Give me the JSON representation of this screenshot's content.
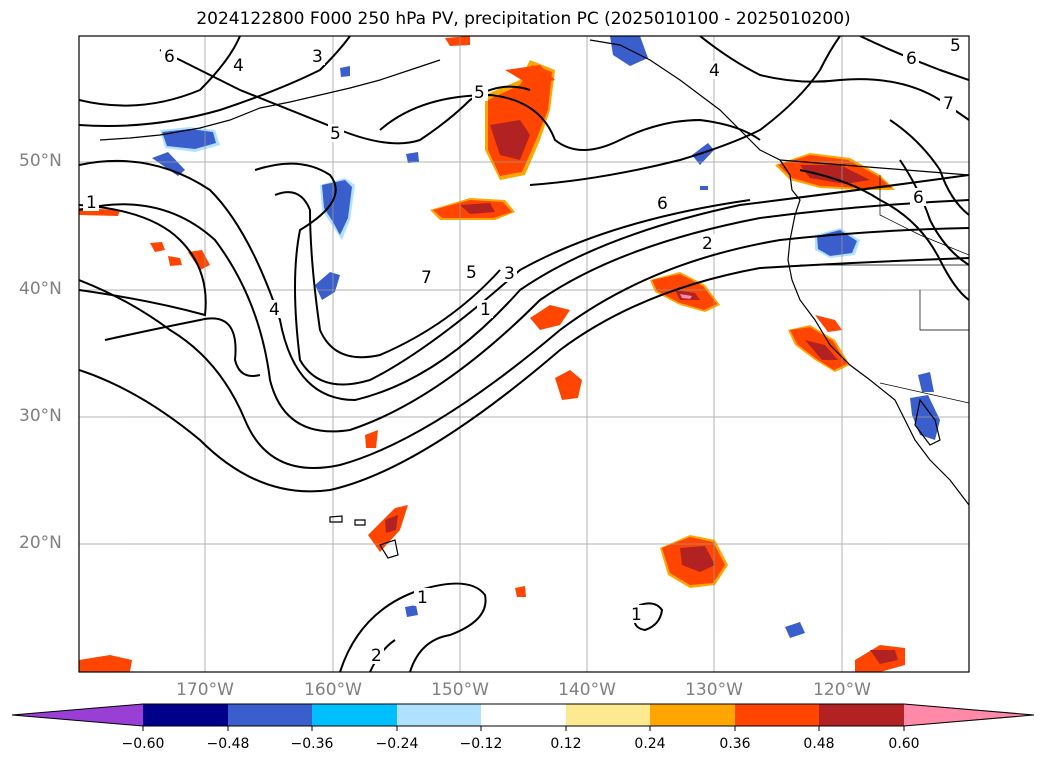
{
  "title": "2024122800 F000 250 hPa PV, precipitation PC (2025010100 - 2025010200)",
  "lat_labels": [
    "50°N",
    "40°N",
    "30°N",
    "20°N"
  ],
  "lon_labels": [
    "170°W",
    "160°W",
    "150°W",
    "140°W",
    "130°W",
    "120°W"
  ],
  "contour_labels": [
    "6",
    "4",
    "3",
    "5",
    "5",
    "4",
    "1",
    "4",
    "7",
    "5",
    "3",
    "1",
    "2",
    "6",
    "6",
    "7",
    "6",
    "5",
    "1",
    "2",
    "1"
  ],
  "colorbar": {
    "ticks": [
      "−0.60",
      "−0.48",
      "−0.36",
      "−0.24",
      "−0.12",
      "0.12",
      "0.24",
      "0.36",
      "0.48",
      "0.60"
    ],
    "colors": [
      "#9a3fd6",
      "#00008b",
      "#3a5fcd",
      "#00bfff",
      "#b0e2ff",
      "#ffffff",
      "#fde98f",
      "#ffa500",
      "#ff4500",
      "#b22222",
      "#ff89a8"
    ]
  }
}
